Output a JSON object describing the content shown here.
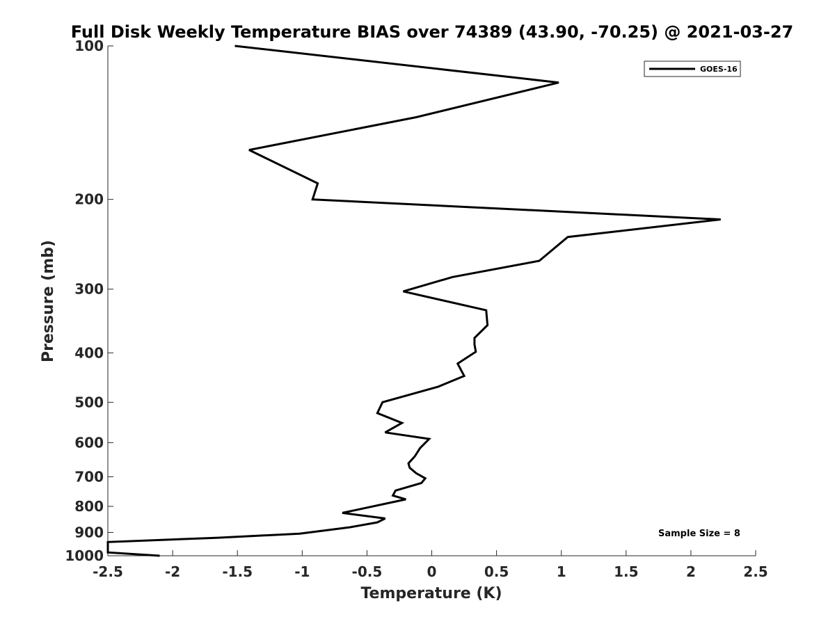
{
  "chart_data": {
    "type": "line",
    "title": "Full Disk Weekly Temperature BIAS over 74389 (43.90, -70.25) @ 2021-03-27",
    "xlabel": "Temperature (K)",
    "ylabel": "Pressure (mb)",
    "xlim": [
      -2.5,
      2.5
    ],
    "ylim": [
      100,
      1000
    ],
    "y_scale": "log",
    "y_reversed": true,
    "grid": false,
    "x_ticks": [
      -2.5,
      -2,
      -1.5,
      -1,
      -0.5,
      0,
      0.5,
      1,
      1.5,
      2,
      2.5
    ],
    "x_tick_labels": [
      "-2.5",
      "-2",
      "-1.5",
      "-1",
      "-0.5",
      "0",
      "0.5",
      "1",
      "1.5",
      "2",
      "2.5"
    ],
    "y_ticks": [
      100,
      200,
      300,
      400,
      500,
      600,
      700,
      800,
      900,
      1000
    ],
    "y_tick_labels": [
      "100",
      "200",
      "300",
      "400",
      "500",
      "600",
      "700",
      "800",
      "900",
      "1000"
    ],
    "legend_position": "top-right",
    "annotation": "Sample Size = 8",
    "series": [
      {
        "name": "GOES-16",
        "color": "#000000",
        "points": [
          {
            "t": -1.52,
            "p": 100
          },
          {
            "t": 0.98,
            "p": 118
          },
          {
            "t": -0.12,
            "p": 138
          },
          {
            "t": -1.41,
            "p": 160
          },
          {
            "t": -0.88,
            "p": 186
          },
          {
            "t": -0.92,
            "p": 200
          },
          {
            "t": 2.23,
            "p": 219
          },
          {
            "t": 1.05,
            "p": 237
          },
          {
            "t": 0.83,
            "p": 264
          },
          {
            "t": 0.16,
            "p": 284
          },
          {
            "t": -0.22,
            "p": 303
          },
          {
            "t": 0.42,
            "p": 330
          },
          {
            "t": 0.43,
            "p": 353
          },
          {
            "t": 0.33,
            "p": 374
          },
          {
            "t": 0.33,
            "p": 385
          },
          {
            "t": 0.34,
            "p": 398
          },
          {
            "t": 0.2,
            "p": 420
          },
          {
            "t": 0.25,
            "p": 444
          },
          {
            "t": 0.05,
            "p": 466
          },
          {
            "t": -0.38,
            "p": 500
          },
          {
            "t": -0.42,
            "p": 525
          },
          {
            "t": -0.23,
            "p": 549
          },
          {
            "t": -0.36,
            "p": 573
          },
          {
            "t": -0.02,
            "p": 590
          },
          {
            "t": -0.09,
            "p": 615
          },
          {
            "t": -0.13,
            "p": 638
          },
          {
            "t": -0.18,
            "p": 659
          },
          {
            "t": -0.17,
            "p": 672
          },
          {
            "t": -0.12,
            "p": 689
          },
          {
            "t": -0.05,
            "p": 705
          },
          {
            "t": -0.08,
            "p": 720
          },
          {
            "t": -0.28,
            "p": 745
          },
          {
            "t": -0.3,
            "p": 762
          },
          {
            "t": -0.2,
            "p": 775
          },
          {
            "t": -0.69,
            "p": 824
          },
          {
            "t": -0.36,
            "p": 845
          },
          {
            "t": -0.42,
            "p": 860
          },
          {
            "t": -0.64,
            "p": 880
          },
          {
            "t": -1.02,
            "p": 905
          },
          {
            "t": -1.65,
            "p": 922
          },
          {
            "t": -2.5,
            "p": 940
          },
          {
            "t": -2.5,
            "p": 985
          },
          {
            "t": -2.1,
            "p": 1000
          }
        ]
      }
    ]
  }
}
